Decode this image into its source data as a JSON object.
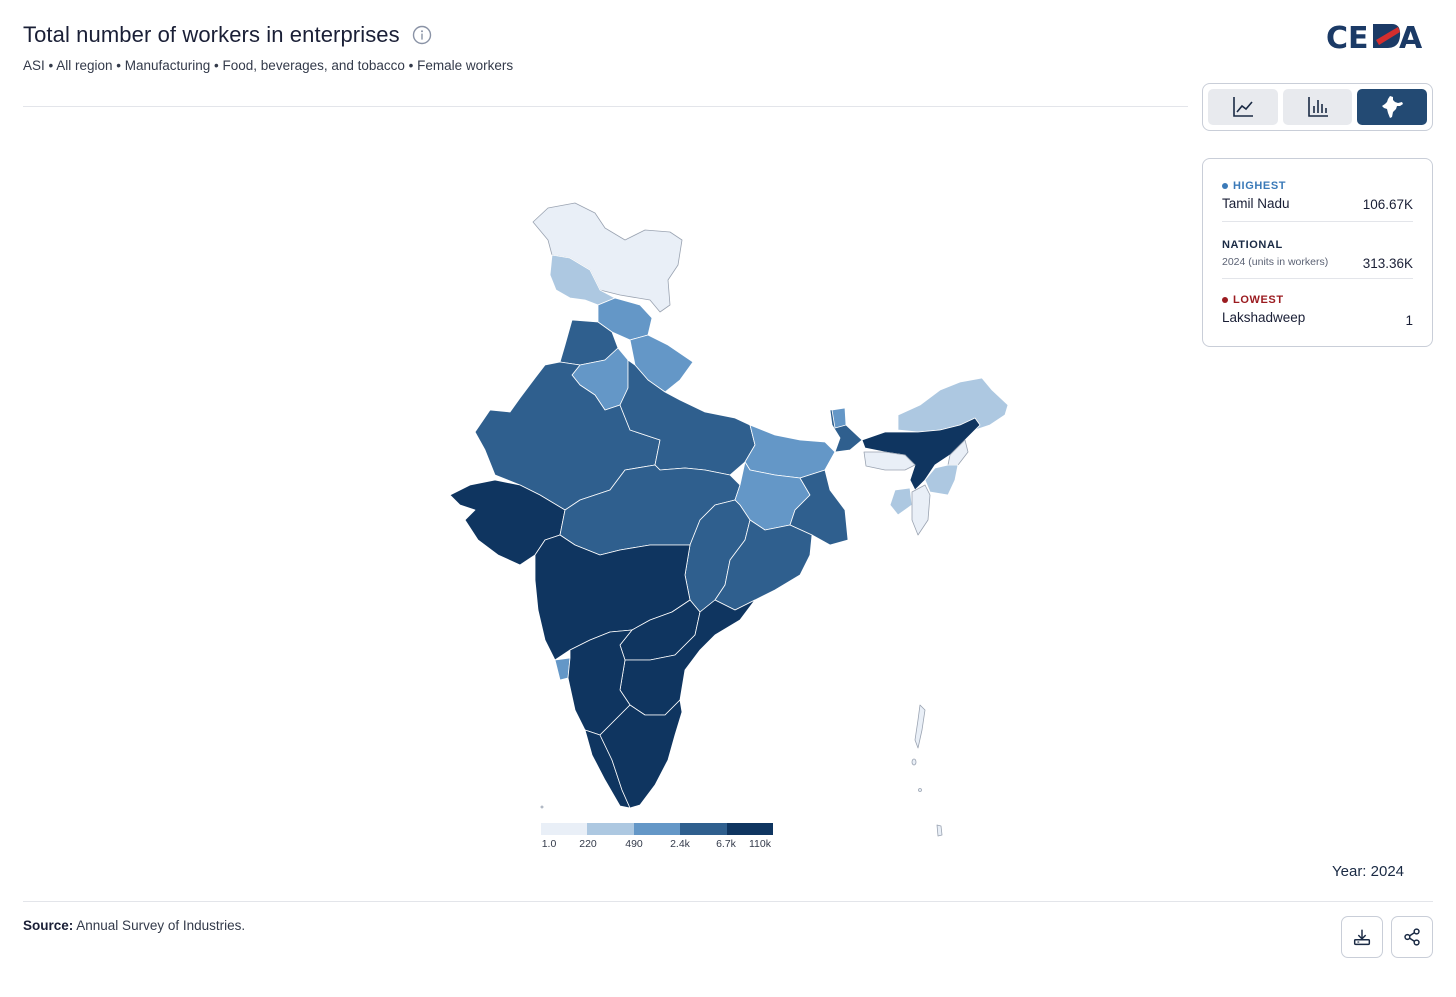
{
  "header": {
    "title": "Total number of workers in enterprises",
    "subtitle": "ASI • All region • Manufacturing • Food, beverages, and tobacco • Female workers",
    "logo_text": "CEDA"
  },
  "view_toggle": {
    "options": [
      "line-chart",
      "bar-chart",
      "map"
    ],
    "active": "map"
  },
  "stats": {
    "highest": {
      "label": "HIGHEST",
      "name": "Tamil Nadu",
      "value": "106.67K",
      "color": "#3b7ab8"
    },
    "national": {
      "label": "NATIONAL",
      "sub": "2024 (units in workers)",
      "value": "313.36K",
      "color": "#1a2a44"
    },
    "lowest": {
      "label": "LOWEST",
      "name": "Lakshadweep",
      "value": "1",
      "color": "#9b1b20"
    }
  },
  "legend": {
    "ticks": [
      "1.0",
      "220",
      "490",
      "2.4k",
      "6.7k",
      "110k"
    ],
    "colors": [
      "#e9eff7",
      "#adc8e1",
      "#6497c7",
      "#2f5f8e",
      "#0f3560"
    ]
  },
  "year_label": "Year: 2024",
  "source": {
    "label": "Source:",
    "text": " Annual Survey of Industries."
  },
  "colors": {
    "bin0": "#e9eff7",
    "bin1": "#adc8e1",
    "bin2": "#6497c7",
    "bin3": "#2f5f8e",
    "bin4": "#0f3560",
    "accent": "#234a73"
  }
}
